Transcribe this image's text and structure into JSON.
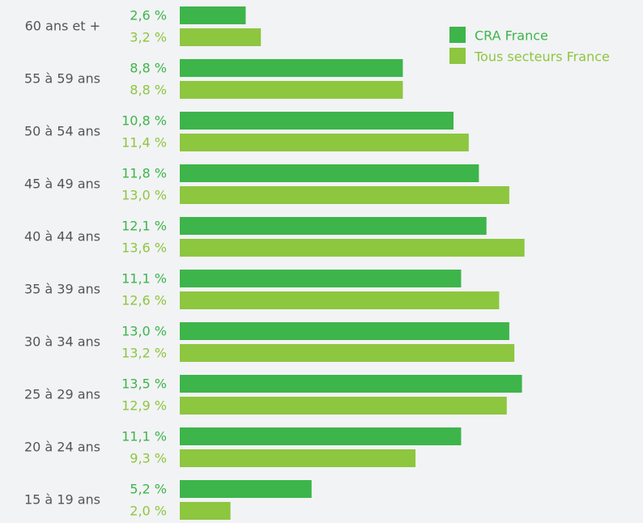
{
  "chart_data": {
    "type": "hbar",
    "categories": [
      "60 ans et +",
      "55 à 59 ans",
      "50 à 54 ans",
      "45 à 49 ans",
      "40 à 44 ans",
      "35 à 39 ans",
      "30 à 34 ans",
      "25 à 29 ans",
      "20 à 24 ans",
      "15 à 19 ans"
    ],
    "series": [
      {
        "name": "CRA France",
        "color": "#3db54a",
        "values": [
          2.6,
          8.8,
          10.8,
          11.8,
          12.1,
          11.1,
          13.0,
          13.5,
          11.1,
          5.2
        ],
        "value_labels": [
          "2,6 %",
          "8,8 %",
          "10,8 %",
          "11,8 %",
          "12,1 %",
          "11,1 %",
          "13,0 %",
          "13,5 %",
          "11,1 %",
          "5,2 %"
        ]
      },
      {
        "name": "Tous secteurs France",
        "color": "#8dc63f",
        "values": [
          3.2,
          8.8,
          11.4,
          13.0,
          13.6,
          12.6,
          13.2,
          12.9,
          9.3,
          2.0
        ],
        "value_labels": [
          "3,2 %",
          "8,8 %",
          "11,4 %",
          "13,0 %",
          "13,6 %",
          "12,6 %",
          "13,2 %",
          "12,9 %",
          "9,3 %",
          "2,0 %"
        ]
      }
    ],
    "legend": "top-right"
  }
}
